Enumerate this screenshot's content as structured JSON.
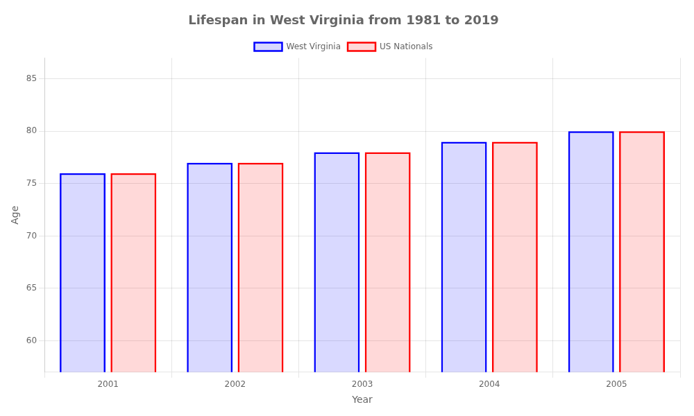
{
  "chart_data": {
    "type": "bar",
    "title": "Lifespan in West Virginia from 1981 to 2019",
    "xlabel": "Year",
    "ylabel": "Age",
    "categories": [
      "2001",
      "2002",
      "2003",
      "2004",
      "2005"
    ],
    "series": [
      {
        "name": "West Virginia",
        "color": "#0000ff",
        "values": [
          76.0,
          77.0,
          78.0,
          79.0,
          80.0
        ]
      },
      {
        "name": "US Nationals",
        "color": "#ff0000",
        "values": [
          76.0,
          77.0,
          78.0,
          79.0,
          80.0
        ]
      }
    ],
    "ylim": [
      57,
      87
    ],
    "yticks": [
      60,
      65,
      70,
      75,
      80,
      85
    ],
    "grid": true,
    "legend": "top"
  }
}
